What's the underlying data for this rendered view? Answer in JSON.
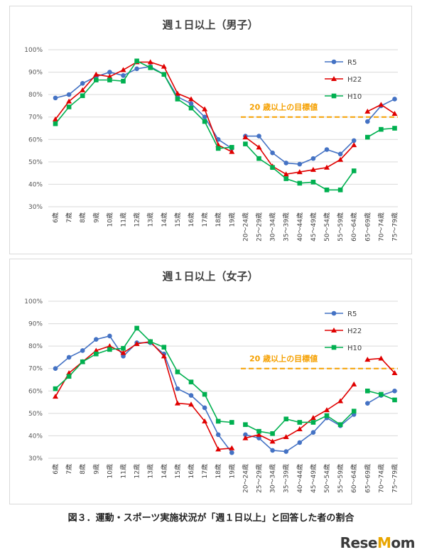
{
  "chart_data": [
    {
      "type": "line",
      "title": "週１日以上（男子）",
      "categories": [
        "6歳",
        "7歳",
        "8歳",
        "9歳",
        "10歳",
        "11歳",
        "12歳",
        "13歳",
        "14歳",
        "15歳",
        "16歳",
        "17歳",
        "18歳",
        "19歳",
        "20～24歳",
        "25～29歳",
        "30～34歳",
        "35～39歳",
        "40～44歳",
        "45～49歳",
        "50～54歳",
        "55～59歳",
        "60～64歳",
        "65～69歳",
        "70～74歳",
        "75～79歳"
      ],
      "ylim": [
        30,
        100
      ],
      "yticks": [
        "100%",
        "90%",
        "80%",
        "70%",
        "60%",
        "50%",
        "40%",
        "30%"
      ],
      "target": {
        "value": 70,
        "label": "20 歳以上の目標値",
        "color": "#f5a000"
      },
      "legend_position": "upper-right",
      "series": [
        {
          "name": "R5",
          "color": "#4472c4",
          "marker": "circle",
          "values": [
            78.5,
            80,
            85,
            88,
            90,
            88.5,
            91.5,
            92.5,
            89,
            79,
            76,
            70,
            60,
            56,
            61.5,
            61.5,
            54,
            49.5,
            49,
            51.5,
            55.5,
            53.5,
            59.5,
            68,
            75,
            78
          ]
        },
        {
          "name": "H22",
          "color": "#e00000",
          "marker": "triangle",
          "values": [
            69,
            77,
            82,
            89,
            88,
            91,
            94.5,
            94.5,
            92.5,
            80.5,
            78,
            73.5,
            57.5,
            54.5,
            61,
            56.5,
            48,
            44.5,
            45.5,
            46.5,
            47.5,
            51,
            57.5,
            72.5,
            75.5,
            71.5
          ]
        },
        {
          "name": "H10",
          "color": "#00b050",
          "marker": "square",
          "values": [
            67,
            74.5,
            79.5,
            86.5,
            86.5,
            86,
            95,
            92,
            89,
            78,
            74,
            68,
            56,
            56.5,
            58,
            51.5,
            47.5,
            42.5,
            40.5,
            41,
            37.5,
            37.5,
            46,
            61,
            64.5,
            65
          ]
        }
      ]
    },
    {
      "type": "line",
      "title": "週１日以上（女子）",
      "categories": [
        "6歳",
        "7歳",
        "8歳",
        "9歳",
        "10歳",
        "11歳",
        "12歳",
        "13歳",
        "14歳",
        "15歳",
        "16歳",
        "17歳",
        "18歳",
        "19歳",
        "20～24歳",
        "25～29歳",
        "30～34歳",
        "35～39歳",
        "40～44歳",
        "45～49歳",
        "50～54歳",
        "55～59歳",
        "60～64歳",
        "65～69歳",
        "70～74歳",
        "75～79歳"
      ],
      "ylim": [
        30,
        100
      ],
      "yticks": [
        "100%",
        "90%",
        "80%",
        "70%",
        "60%",
        "50%",
        "40%",
        "30%"
      ],
      "target": {
        "value": 70,
        "label": "20 歳以上の目標値",
        "color": "#f5a000"
      },
      "legend_position": "upper-right",
      "series": [
        {
          "name": "R5",
          "color": "#4472c4",
          "marker": "circle",
          "values": [
            70,
            75,
            78,
            83,
            84.5,
            75.5,
            81.5,
            81.5,
            76.5,
            61,
            58,
            52.5,
            40.5,
            32.5,
            40.5,
            39,
            33.5,
            33,
            37,
            41.5,
            48,
            44.5,
            49.5,
            54.5,
            58,
            60
          ]
        },
        {
          "name": "H22",
          "color": "#e00000",
          "marker": "triangle",
          "values": [
            57.5,
            68,
            73,
            78,
            80,
            77,
            81,
            82,
            75.5,
            54.5,
            54,
            46.5,
            34,
            34.5,
            39,
            40.5,
            37.5,
            39.5,
            43,
            48,
            51.5,
            55.5,
            63,
            74,
            74.5,
            68
          ]
        },
        {
          "name": "H10",
          "color": "#00b050",
          "marker": "square",
          "values": [
            61,
            66.5,
            73,
            76.5,
            78.5,
            79,
            88,
            82,
            79.5,
            68.5,
            64,
            58.5,
            46.5,
            46,
            45,
            42,
            41,
            47.5,
            46,
            46,
            49,
            45,
            51,
            60,
            58.5,
            56
          ]
        }
      ]
    }
  ],
  "caption": "図３．運動・スポーツ実施状況が「週１日以上」と回答した者の割合",
  "logo": {
    "text_main": "ReseMom",
    "dot": "."
  }
}
